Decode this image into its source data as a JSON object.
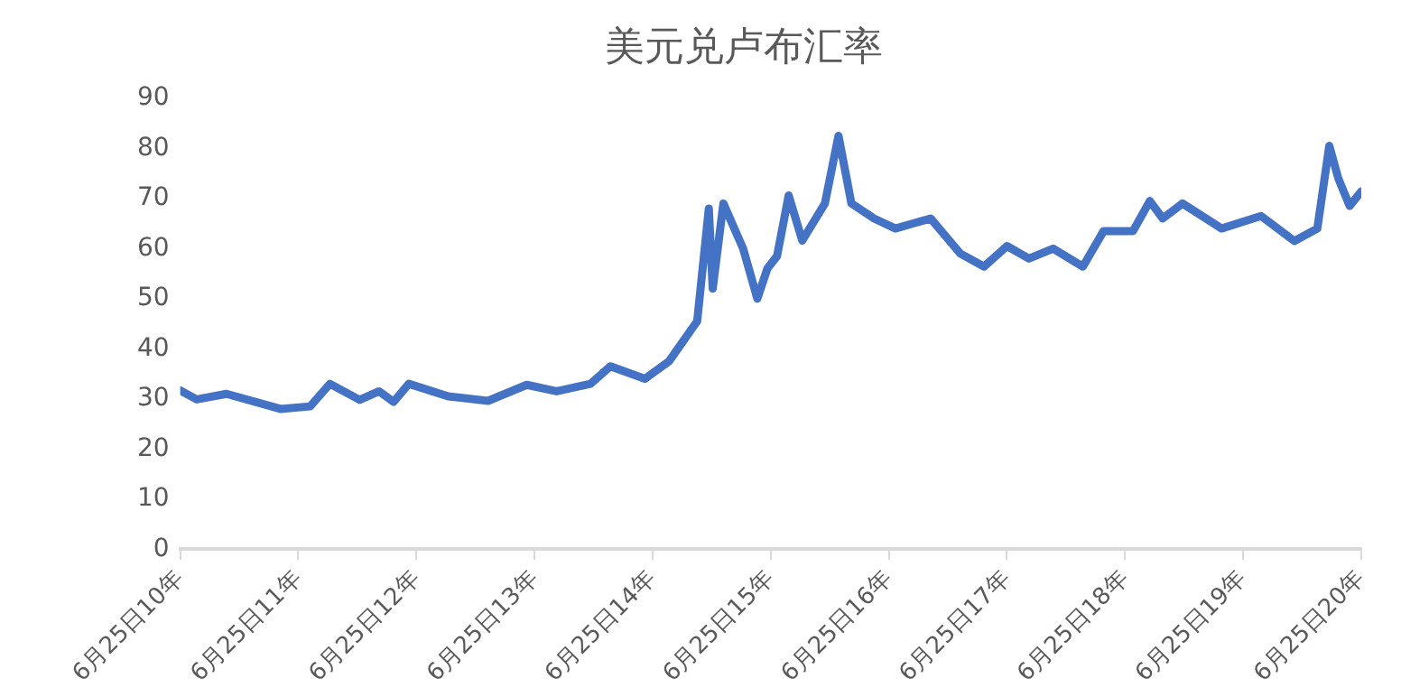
{
  "chart_data": {
    "type": "line",
    "title": "美元兑卢布汇率",
    "x": [
      "2010-06-25",
      "2010-08-15",
      "2010-11-15",
      "2011-05-01",
      "2011-08-01",
      "2011-10-01",
      "2012-01-01",
      "2012-03-01",
      "2012-04-15",
      "2012-06-01",
      "2012-10-01",
      "2013-02-01",
      "2013-06-01",
      "2013-09-01",
      "2013-12-15",
      "2014-02-15",
      "2014-06-01",
      "2014-08-15",
      "2014-11-10",
      "2014-12-16",
      "2014-12-28",
      "2015-01-30",
      "2015-04-01",
      "2015-05-15",
      "2015-06-15",
      "2015-07-15",
      "2015-08-20",
      "2015-10-01",
      "2015-12-10",
      "2016-01-21",
      "2016-03-01",
      "2016-05-10",
      "2016-07-15",
      "2016-11-01",
      "2017-02-01",
      "2017-04-15",
      "2017-06-25",
      "2017-09-01",
      "2017-11-15",
      "2018-02-15",
      "2018-04-20",
      "2018-07-20",
      "2018-09-10",
      "2018-10-20",
      "2018-12-20",
      "2019-04-20",
      "2019-08-20",
      "2019-12-01",
      "2020-02-10",
      "2020-03-18",
      "2020-04-15",
      "2020-05-20",
      "2020-06-25"
    ],
    "series": [
      {
        "color": "#4472c4",
        "values": [
          31.7,
          29.9,
          31,
          28,
          28.5,
          33,
          29.8,
          31.5,
          29.4,
          33,
          30.5,
          29.6,
          32.8,
          31.5,
          33,
          36.5,
          34,
          37.5,
          45.5,
          68,
          52,
          69,
          60,
          50,
          56,
          58.5,
          70.6,
          61.6,
          69,
          82.5,
          69,
          66,
          64,
          66,
          59,
          56.4,
          60.5,
          58,
          60,
          56.4,
          63.5,
          63.5,
          69.5,
          66,
          69,
          64,
          66.5,
          61.5,
          64,
          80.5,
          74,
          68.5,
          71.4
        ]
      }
    ],
    "xlim": [
      "2010-06-25",
      "2020-06-25"
    ],
    "xticks": [
      {
        "value": "2010-06-25",
        "label": "6月25日10年"
      },
      {
        "value": "2011-06-25",
        "label": "6月25日11年"
      },
      {
        "value": "2012-06-25",
        "label": "6月25日12年"
      },
      {
        "value": "2013-06-25",
        "label": "6月25日13年"
      },
      {
        "value": "2014-06-25",
        "label": "6月25日14年"
      },
      {
        "value": "2015-06-25",
        "label": "6月25日15年"
      },
      {
        "value": "2016-06-25",
        "label": "6月25日16年"
      },
      {
        "value": "2017-06-25",
        "label": "6月25日17年"
      },
      {
        "value": "2018-06-25",
        "label": "6月25日18年"
      },
      {
        "value": "2019-06-25",
        "label": "6月25日19年"
      },
      {
        "value": "2020-06-25",
        "label": "6月25日20年"
      }
    ],
    "ylim": [
      0,
      90
    ],
    "yticks": [
      0,
      10,
      20,
      30,
      40,
      50,
      60,
      70,
      80,
      90
    ],
    "grid": false,
    "legend": false,
    "marker": "none",
    "line_style": "solid"
  }
}
